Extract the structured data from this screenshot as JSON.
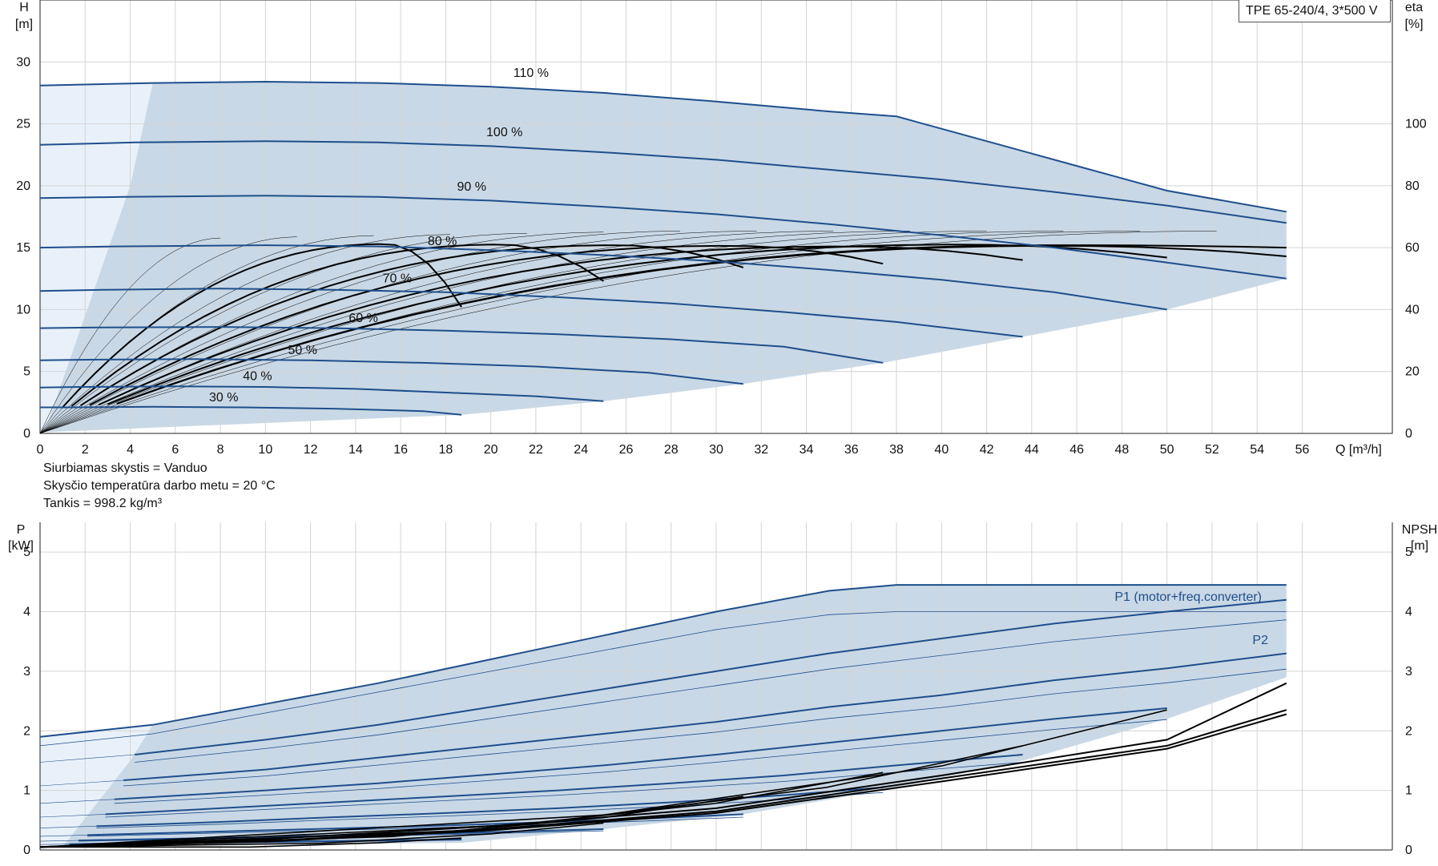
{
  "title": "TPE 65-240/4, 3*500 V",
  "info": {
    "liquid": "Siurbiamas skystis = Vanduo",
    "temperature": "Skysčio temperatūra darbo metu = 20 °C",
    "density": "Tankis = 998.2 kg/m³"
  },
  "colors": {
    "curve": "#1f4e8c",
    "band": "#c9d8e6",
    "band_light": "#e8f1fa",
    "grid": "#d4d4d4",
    "eff": "#000000"
  },
  "chart_data": [
    {
      "type": "line",
      "name": "head",
      "xlabel": "Q [m³/h]",
      "ylabel_line1": "H",
      "ylabel_line2": "[m]",
      "y2label_line1": "eta",
      "y2label_line2": "[%]",
      "xlim": [
        0,
        60
      ],
      "ylim": [
        0,
        35
      ],
      "y2lim": [
        0,
        140
      ],
      "xticks": [
        0,
        2,
        4,
        6,
        8,
        10,
        12,
        14,
        16,
        18,
        20,
        22,
        24,
        26,
        28,
        30,
        32,
        34,
        36,
        38,
        40,
        42,
        44,
        46,
        48,
        50,
        52,
        54,
        56
      ],
      "yticks": [
        0,
        5,
        10,
        15,
        20,
        25,
        30
      ],
      "y2ticks": [
        0,
        20,
        40,
        60,
        80,
        100
      ],
      "grid": true,
      "series": [
        {
          "label": "110 %",
          "label_at": [
            21,
            28.8
          ],
          "x": [
            0,
            5,
            10,
            15,
            20,
            25,
            30,
            35,
            38,
            42,
            46,
            50,
            55.3
          ],
          "y": [
            28.1,
            28.3,
            28.4,
            28.3,
            28.0,
            27.5,
            26.8,
            26.0,
            25.6,
            23.6,
            21.6,
            19.6,
            17.9
          ]
        },
        {
          "label": "100 %",
          "label_at": [
            19.8,
            24.0
          ],
          "x": [
            0,
            4.2,
            10,
            15,
            20,
            25,
            30,
            35,
            40,
            45,
            50,
            55.3
          ],
          "y": [
            23.3,
            23.5,
            23.6,
            23.5,
            23.2,
            22.7,
            22.1,
            21.3,
            20.5,
            19.5,
            18.4,
            17.0
          ]
        },
        {
          "label": "90 %",
          "label_at": [
            18.5,
            19.6
          ],
          "x": [
            0,
            3.7,
            10,
            15,
            20,
            25,
            30,
            35,
            40,
            45,
            50,
            55.3
          ],
          "y": [
            19.0,
            19.1,
            19.2,
            19.1,
            18.8,
            18.3,
            17.7,
            16.9,
            16.0,
            15.0,
            13.8,
            12.5
          ]
        },
        {
          "label": "80 %",
          "label_at": [
            17.2,
            15.2
          ],
          "x": [
            0,
            3.3,
            10,
            15,
            20,
            25,
            30,
            35,
            40,
            45,
            50
          ],
          "y": [
            15.0,
            15.1,
            15.2,
            15.1,
            14.8,
            14.4,
            13.9,
            13.2,
            12.4,
            11.4,
            10.0
          ]
        },
        {
          "label": "70 %",
          "label_at": [
            15.2,
            12.2
          ],
          "x": [
            0,
            2.9,
            8,
            13,
            18,
            23,
            28,
            33,
            38,
            43.6
          ],
          "y": [
            11.5,
            11.6,
            11.7,
            11.6,
            11.4,
            11.0,
            10.5,
            9.8,
            9.0,
            7.8
          ]
        },
        {
          "label": "60 %",
          "label_at": [
            13.7,
            9.0
          ],
          "x": [
            0,
            2.5,
            8,
            13,
            18,
            23,
            28,
            33,
            37.4
          ],
          "y": [
            8.5,
            8.55,
            8.6,
            8.5,
            8.3,
            8.0,
            7.6,
            7.0,
            5.7
          ]
        },
        {
          "label": "50 %",
          "label_at": [
            11.0,
            6.4
          ],
          "x": [
            0,
            2.1,
            7,
            12,
            17,
            22,
            27,
            31.2
          ],
          "y": [
            5.9,
            5.95,
            6.0,
            5.9,
            5.7,
            5.4,
            4.9,
            4.0
          ]
        },
        {
          "label": "40 %",
          "label_at": [
            9.0,
            4.3
          ],
          "x": [
            0,
            1.7,
            6,
            10,
            14,
            18,
            22,
            25
          ],
          "y": [
            3.7,
            3.75,
            3.8,
            3.75,
            3.6,
            3.3,
            3.0,
            2.6
          ]
        },
        {
          "label": "30 %",
          "label_at": [
            7.5,
            2.6
          ],
          "x": [
            0,
            1.3,
            5,
            9,
            13,
            17,
            18.7
          ],
          "y": [
            2.1,
            2.1,
            2.15,
            2.1,
            2.0,
            1.8,
            1.5
          ]
        }
      ]
    },
    {
      "type": "line",
      "name": "power",
      "ylabel_line1": "P",
      "ylabel_line2": "[kW]",
      "y2label_line1": "NPSH",
      "y2label_line2": "[m]",
      "xlim": [
        0,
        60
      ],
      "ylim": [
        0,
        5.5
      ],
      "yticks": [
        0,
        1,
        2,
        3,
        4,
        5
      ],
      "y2ticks": [
        0,
        1,
        2,
        3,
        4,
        5
      ],
      "grid": true,
      "p1_label": "P1 (motor+freq.converter)",
      "p2_label": "P2",
      "p1_top": {
        "x": [
          0,
          5,
          10,
          15,
          20,
          25,
          30,
          35,
          38,
          42,
          46,
          50,
          55.3
        ],
        "y": [
          1.9,
          2.1,
          2.45,
          2.8,
          3.2,
          3.6,
          4.0,
          4.35,
          4.45,
          4.45,
          4.45,
          4.45,
          4.45
        ]
      },
      "p2_top": {
        "x": [
          0,
          5,
          10,
          15,
          20,
          25,
          30,
          35,
          38,
          42,
          46,
          50,
          55.3
        ],
        "y": [
          1.75,
          1.95,
          2.3,
          2.65,
          3.0,
          3.35,
          3.7,
          3.95,
          4.0,
          4.0,
          4.0,
          4.0,
          4.0
        ]
      },
      "series": [
        {
          "x": [
            4.2,
            10,
            15,
            20,
            25,
            30,
            35,
            40,
            45,
            50,
            55.3
          ],
          "y": [
            1.6,
            1.85,
            2.1,
            2.4,
            2.7,
            3.0,
            3.3,
            3.55,
            3.8,
            4.0,
            4.2
          ]
        },
        {
          "x": [
            3.7,
            10,
            15,
            20,
            25,
            30,
            35,
            40,
            45,
            50,
            55.3
          ],
          "y": [
            1.17,
            1.35,
            1.55,
            1.75,
            1.95,
            2.15,
            2.4,
            2.6,
            2.85,
            3.05,
            3.3
          ]
        },
        {
          "x": [
            3.3,
            10,
            15,
            20,
            25,
            30,
            35,
            40,
            45,
            50
          ],
          "y": [
            0.85,
            1.0,
            1.12,
            1.27,
            1.42,
            1.6,
            1.8,
            2.0,
            2.2,
            2.38
          ]
        },
        {
          "x": [
            2.9,
            8,
            13,
            18,
            23,
            28,
            33,
            38,
            43.6
          ],
          "y": [
            0.6,
            0.7,
            0.8,
            0.9,
            1.0,
            1.12,
            1.25,
            1.42,
            1.6
          ]
        },
        {
          "x": [
            2.5,
            8,
            13,
            18,
            23,
            28,
            33,
            37.4
          ],
          "y": [
            0.4,
            0.47,
            0.55,
            0.62,
            0.7,
            0.8,
            0.92,
            1.05
          ]
        },
        {
          "x": [
            2.1,
            7,
            12,
            17,
            22,
            27,
            31.2
          ],
          "y": [
            0.25,
            0.3,
            0.35,
            0.4,
            0.46,
            0.53,
            0.6
          ]
        },
        {
          "x": [
            1.7,
            6,
            10,
            14,
            18,
            22,
            25
          ],
          "y": [
            0.16,
            0.19,
            0.22,
            0.25,
            0.28,
            0.32,
            0.35
          ]
        },
        {
          "x": [
            1.3,
            5,
            9,
            13,
            17,
            18.7
          ],
          "y": [
            0.1,
            0.12,
            0.13,
            0.15,
            0.17,
            0.18
          ]
        }
      ],
      "npsh": [
        {
          "x": [
            0,
            10,
            20,
            30,
            40,
            50,
            55.3
          ],
          "y": [
            0.05,
            0.18,
            0.4,
            0.7,
            1.25,
            1.85,
            2.8
          ]
        },
        {
          "x": [
            0,
            10,
            20,
            30,
            40,
            50,
            55.3
          ],
          "y": [
            0.05,
            0.15,
            0.35,
            0.65,
            1.2,
            1.75,
            2.35
          ]
        },
        {
          "x": [
            0,
            10,
            20,
            30,
            40,
            50,
            55.3
          ],
          "y": [
            0.05,
            0.14,
            0.33,
            0.62,
            1.15,
            1.7,
            2.28
          ]
        }
      ]
    }
  ]
}
